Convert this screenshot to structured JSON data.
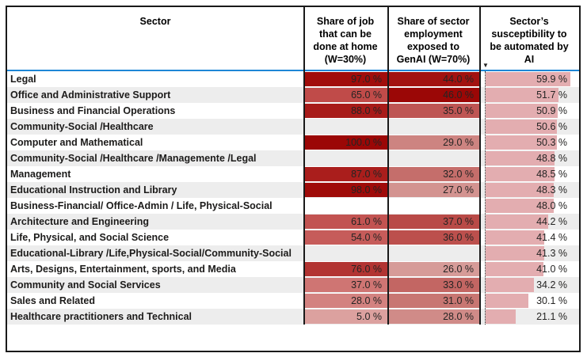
{
  "chart_data": {
    "type": "table",
    "columns": [
      "Sector",
      "Share of job that can be done at home (W=30%)",
      "Share of sector employment exposed to GenAI (W=70%)",
      "Sector’s susceptibility to be automated by AI"
    ],
    "units": "%",
    "sort": {
      "column": "Sector’s susceptibility to be automated by AI",
      "order": "descending"
    },
    "rows": [
      {
        "sector": "Legal",
        "home_pct": 97.0,
        "genai_pct": 44.0,
        "ai_pct": 59.9
      },
      {
        "sector": "Office and Administrative Support",
        "home_pct": 65.0,
        "genai_pct": 46.0,
        "ai_pct": 51.7
      },
      {
        "sector": "Business and Financial Operations",
        "home_pct": 88.0,
        "genai_pct": 35.0,
        "ai_pct": 50.9
      },
      {
        "sector": "Community-Social /Healthcare",
        "home_pct": null,
        "genai_pct": null,
        "ai_pct": 50.6
      },
      {
        "sector": "Computer and Mathematical",
        "home_pct": 100.0,
        "genai_pct": 29.0,
        "ai_pct": 50.3
      },
      {
        "sector": "Community-Social /Healthcare /Managemente /Legal",
        "home_pct": null,
        "genai_pct": null,
        "ai_pct": 48.8
      },
      {
        "sector": "Management",
        "home_pct": 87.0,
        "genai_pct": 32.0,
        "ai_pct": 48.5
      },
      {
        "sector": "Educational Instruction and Library",
        "home_pct": 98.0,
        "genai_pct": 27.0,
        "ai_pct": 48.3
      },
      {
        "sector": "Business-Financial/ Office-Admin / Life, Physical-Social",
        "home_pct": null,
        "genai_pct": null,
        "ai_pct": 48.0
      },
      {
        "sector": "Architecture and Engineering",
        "home_pct": 61.0,
        "genai_pct": 37.0,
        "ai_pct": 44.2
      },
      {
        "sector": "Life, Physical, and Social Science",
        "home_pct": 54.0,
        "genai_pct": 36.0,
        "ai_pct": 41.4
      },
      {
        "sector": "Educational-Library /Life,Physical-Social/Community-Social",
        "home_pct": null,
        "genai_pct": null,
        "ai_pct": 41.3
      },
      {
        "sector": "Arts, Designs, Entertainment, sports, and Media",
        "home_pct": 76.0,
        "genai_pct": 26.0,
        "ai_pct": 41.0
      },
      {
        "sector": "Community and Social Services",
        "home_pct": 37.0,
        "genai_pct": 33.0,
        "ai_pct": 34.2
      },
      {
        "sector": "Sales and Related",
        "home_pct": 28.0,
        "genai_pct": 31.0,
        "ai_pct": 30.1
      },
      {
        "sector": "Healthcare practitioners and Technical",
        "home_pct": 5.0,
        "genai_pct": 28.0,
        "ai_pct": 21.1
      }
    ]
  },
  "header": {
    "sector": "Sector",
    "home_lines": "Share of job\nthat can be\ndone at home\n(W=30%)",
    "genai_lines": "Share of sector\nemployment\nexposed to\nGenAI (W=70%)",
    "ai_lines": "Sector’s\nsusceptibility to\nbe automated by\nAI",
    "sort_icon_glyph": "▼"
  },
  "display": {
    "bar_scale_max": 67.2,
    "rows": [
      {
        "sector": "Legal",
        "home": "97.0 %",
        "home_color": "#A10D0B",
        "genai": "44.0 %",
        "genai_color": "#A21210",
        "ai": "59.9 %",
        "ai_value": 59.9
      },
      {
        "sector": "Office and Administrative Support",
        "home": "65.0 %",
        "home_color": "#C04B49",
        "genai": "46.0 %",
        "genai_color": "#9B0706",
        "ai": "51.7 %",
        "ai_value": 51.7
      },
      {
        "sector": "Business and Financial Operations",
        "home": "88.0 %",
        "home_color": "#A81B19",
        "genai": "35.0 %",
        "genai_color": "#BE5553",
        "ai": "50.9 %",
        "ai_value": 50.9
      },
      {
        "sector": "Community-Social /Healthcare",
        "home": "",
        "home_color": "",
        "genai": "",
        "genai_color": "",
        "ai": "50.6 %",
        "ai_value": 50.6
      },
      {
        "sector": "Computer and Mathematical",
        "home": "100.0 %",
        "home_color": "#9B0706",
        "genai": "29.0 %",
        "genai_color": "#CD8481",
        "ai": "50.3 %",
        "ai_value": 50.3
      },
      {
        "sector": "Community-Social /Healthcare /Managemente /Legal",
        "home": "",
        "home_color": "",
        "genai": "",
        "genai_color": "",
        "ai": "48.8 %",
        "ai_value": 48.8
      },
      {
        "sector": "Management",
        "home": "87.0 %",
        "home_color": "#AA1E1C",
        "genai": "32.0 %",
        "genai_color": "#C56E6B",
        "ai": "48.5 %",
        "ai_value": 48.5
      },
      {
        "sector": "Educational Instruction and Library",
        "home": "98.0 %",
        "home_color": "#9F0B09",
        "genai": "27.0 %",
        "genai_color": "#D39390",
        "ai": "48.3 %",
        "ai_value": 48.3
      },
      {
        "sector": "Business-Financial/ Office-Admin / Life, Physical-Social",
        "home": "",
        "home_color": "",
        "genai": "",
        "genai_color": "",
        "ai": "48.0 %",
        "ai_value": 48.0
      },
      {
        "sector": "Architecture and Engineering",
        "home": "61.0 %",
        "home_color": "#C25351",
        "genai": "37.0 %",
        "genai_color": "#B94A47",
        "ai": "44.2 %",
        "ai_value": 44.2
      },
      {
        "sector": "Life, Physical, and Social Science",
        "home": "54.0 %",
        "home_color": "#C65C5A",
        "genai": "36.0 %",
        "genai_color": "#BC504D",
        "ai": "41.4 %",
        "ai_value": 41.4
      },
      {
        "sector": "Educational-Library /Life,Physical-Social/Community-Social",
        "home": "",
        "home_color": "",
        "genai": "",
        "genai_color": "",
        "ai": "41.3 %",
        "ai_value": 41.3
      },
      {
        "sector": "Arts, Designs, Entertainment, sports, and Media",
        "home": "76.0 %",
        "home_color": "#B23432",
        "genai": "26.0 %",
        "genai_color": "#D69B98",
        "ai": "41.0 %",
        "ai_value": 41.0
      },
      {
        "sector": "Community and Social Services",
        "home": "37.0 %",
        "home_color": "#CF7573",
        "genai": "33.0 %",
        "genai_color": "#C36663",
        "ai": "34.2 %",
        "ai_value": 34.2
      },
      {
        "sector": "Sales and Related",
        "home": "28.0 %",
        "home_color": "#D38280",
        "genai": "31.0 %",
        "genai_color": "#C87672",
        "ai": "30.1 %",
        "ai_value": 30.1
      },
      {
        "sector": "Healthcare practitioners and Technical",
        "home": "5.0 %",
        "home_color": "#DCA19F",
        "genai": "28.0 %",
        "genai_color": "#D08B88",
        "ai": "21.1 %",
        "ai_value": 21.1
      }
    ]
  },
  "colors": {
    "header_rule_blue": "#1E87D6",
    "data_bar_pink": "#E3ADB0",
    "row_alt_gray": "#EDEDED",
    "scale_darkest_red": "#9B0706",
    "scale_lightest_red": "#DCA19F",
    "border_black": "#1A1A1A",
    "text_dark": "#252423"
  }
}
